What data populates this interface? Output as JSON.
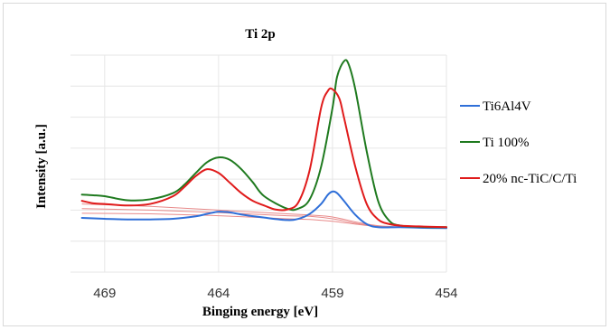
{
  "chart_data": {
    "type": "line",
    "title": "Ti 2p",
    "xlabel": "Binging energy [eV]",
    "ylabel": "Intensity [a.u.]",
    "x_reversed": true,
    "xlim": [
      470.5,
      454
    ],
    "ylim": [
      0,
      7
    ],
    "xticks": [
      469,
      464,
      459,
      454
    ],
    "yticks": [
      0,
      1,
      2,
      3,
      4,
      5,
      6,
      7
    ],
    "grid": true,
    "legend_position": "right",
    "series": [
      {
        "name": "Ti6Al4V",
        "color": "#2f6fd8",
        "role": "data",
        "x": [
          470,
          469,
          468,
          467,
          466,
          465,
          464.5,
          464,
          463.5,
          463,
          462,
          461,
          460.5,
          460,
          459.5,
          459.2,
          459,
          458.8,
          458.5,
          458,
          457.5,
          457,
          456,
          455,
          454
        ],
        "y": [
          1.75,
          1.72,
          1.7,
          1.7,
          1.72,
          1.8,
          1.88,
          1.95,
          1.93,
          1.86,
          1.76,
          1.68,
          1.72,
          1.88,
          2.2,
          2.5,
          2.6,
          2.55,
          2.3,
          1.85,
          1.55,
          1.45,
          1.45,
          1.43,
          1.42
        ]
      },
      {
        "name": "Ti 100%",
        "color": "#1f7a1f",
        "role": "data",
        "x": [
          470,
          469.5,
          469,
          468,
          467,
          466,
          465.5,
          465,
          464.5,
          464,
          463.5,
          463,
          462.5,
          462,
          461,
          460.5,
          460,
          459.5,
          459,
          458.8,
          458.5,
          458.3,
          458,
          457.5,
          457,
          456.5,
          456,
          455,
          454
        ],
        "y": [
          2.5,
          2.48,
          2.45,
          2.32,
          2.35,
          2.55,
          2.82,
          3.2,
          3.55,
          3.7,
          3.62,
          3.32,
          2.9,
          2.45,
          2.05,
          2.05,
          2.35,
          3.4,
          5.3,
          6.3,
          6.8,
          6.72,
          5.9,
          3.9,
          2.3,
          1.65,
          1.5,
          1.46,
          1.45
        ]
      },
      {
        "name": "20% nc-TiC/C/Ti",
        "color": "#e01b1b",
        "role": "data",
        "x": [
          470,
          469.5,
          469,
          468,
          467,
          466,
          465.5,
          465,
          464.5,
          464,
          463.5,
          463,
          462.5,
          462,
          461.5,
          461,
          460.5,
          460,
          459.5,
          459.2,
          459,
          458.7,
          458.5,
          458,
          457.5,
          457,
          456.5,
          456,
          455,
          454
        ],
        "y": [
          2.3,
          2.22,
          2.2,
          2.15,
          2.2,
          2.45,
          2.75,
          3.1,
          3.32,
          3.2,
          2.88,
          2.55,
          2.3,
          2.15,
          2.02,
          2.02,
          2.25,
          3.3,
          5.3,
          5.85,
          5.9,
          5.6,
          5.0,
          3.4,
          2.2,
          1.7,
          1.55,
          1.5,
          1.47,
          1.45
        ]
      },
      {
        "name": "",
        "color": "#e88a8a",
        "role": "background",
        "x": [
          470,
          467,
          464,
          461,
          460,
          459,
          458,
          457,
          456,
          455,
          454
        ],
        "y": [
          1.9,
          1.88,
          1.82,
          1.72,
          1.7,
          1.64,
          1.55,
          1.47,
          1.44,
          1.43,
          1.42
        ]
      },
      {
        "name": "",
        "color": "#e88a8a",
        "role": "background",
        "x": [
          470,
          467,
          464,
          461,
          460,
          459,
          458,
          457,
          456,
          455,
          454
        ],
        "y": [
          2.2,
          2.12,
          2.0,
          1.88,
          1.84,
          1.78,
          1.62,
          1.5,
          1.46,
          1.44,
          1.43
        ]
      },
      {
        "name": "",
        "color": "#e88a8a",
        "role": "background",
        "x": [
          470,
          467,
          464,
          461,
          460,
          459,
          458,
          457,
          456,
          455,
          454
        ],
        "y": [
          2.05,
          2.0,
          1.92,
          1.82,
          1.8,
          1.72,
          1.58,
          1.48,
          1.45,
          1.43,
          1.42
        ]
      }
    ]
  }
}
